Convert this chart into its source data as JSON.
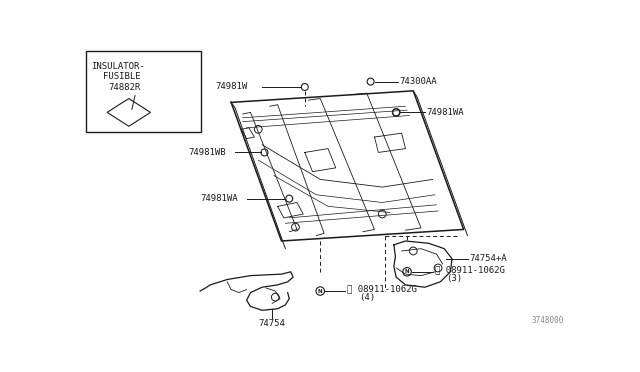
{
  "bg_color": "#ffffff",
  "line_color": "#1a1a1a",
  "diagram_number": "3748000",
  "box_label_line1": "INSULATOR-",
  "box_label_line2": "FUSIBLE",
  "box_part_number": "74882R",
  "fig_w": 6.4,
  "fig_h": 3.72,
  "dpi": 100
}
